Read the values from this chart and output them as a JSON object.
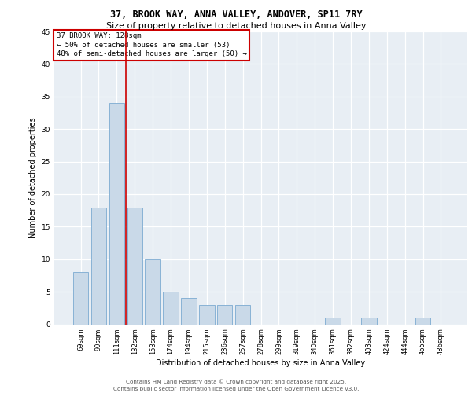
{
  "title_line1": "37, BROOK WAY, ANNA VALLEY, ANDOVER, SP11 7RY",
  "title_line2": "Size of property relative to detached houses in Anna Valley",
  "xlabel": "Distribution of detached houses by size in Anna Valley",
  "ylabel": "Number of detached properties",
  "bar_labels": [
    "69sqm",
    "90sqm",
    "111sqm",
    "132sqm",
    "153sqm",
    "174sqm",
    "194sqm",
    "215sqm",
    "236sqm",
    "257sqm",
    "278sqm",
    "299sqm",
    "319sqm",
    "340sqm",
    "361sqm",
    "382sqm",
    "403sqm",
    "424sqm",
    "444sqm",
    "465sqm",
    "486sqm"
  ],
  "bar_values": [
    8,
    18,
    34,
    18,
    10,
    5,
    4,
    3,
    3,
    3,
    0,
    0,
    0,
    0,
    1,
    0,
    1,
    0,
    0,
    1,
    0
  ],
  "bar_color": "#c9d9e8",
  "bar_edgecolor": "#7baad1",
  "vline_color": "#cc0000",
  "vline_position": 2.5,
  "annotation_text": "37 BROOK WAY: 128sqm\n← 50% of detached houses are smaller (53)\n48% of semi-detached houses are larger (50) →",
  "box_edgecolor": "#cc0000",
  "ylim": [
    0,
    45
  ],
  "yticks": [
    0,
    5,
    10,
    15,
    20,
    25,
    30,
    35,
    40,
    45
  ],
  "grid_color": "#dce6f0",
  "background_color": "#e8eef4",
  "footer_line1": "Contains HM Land Registry data © Crown copyright and database right 2025.",
  "footer_line2": "Contains public sector information licensed under the Open Government Licence v3.0."
}
